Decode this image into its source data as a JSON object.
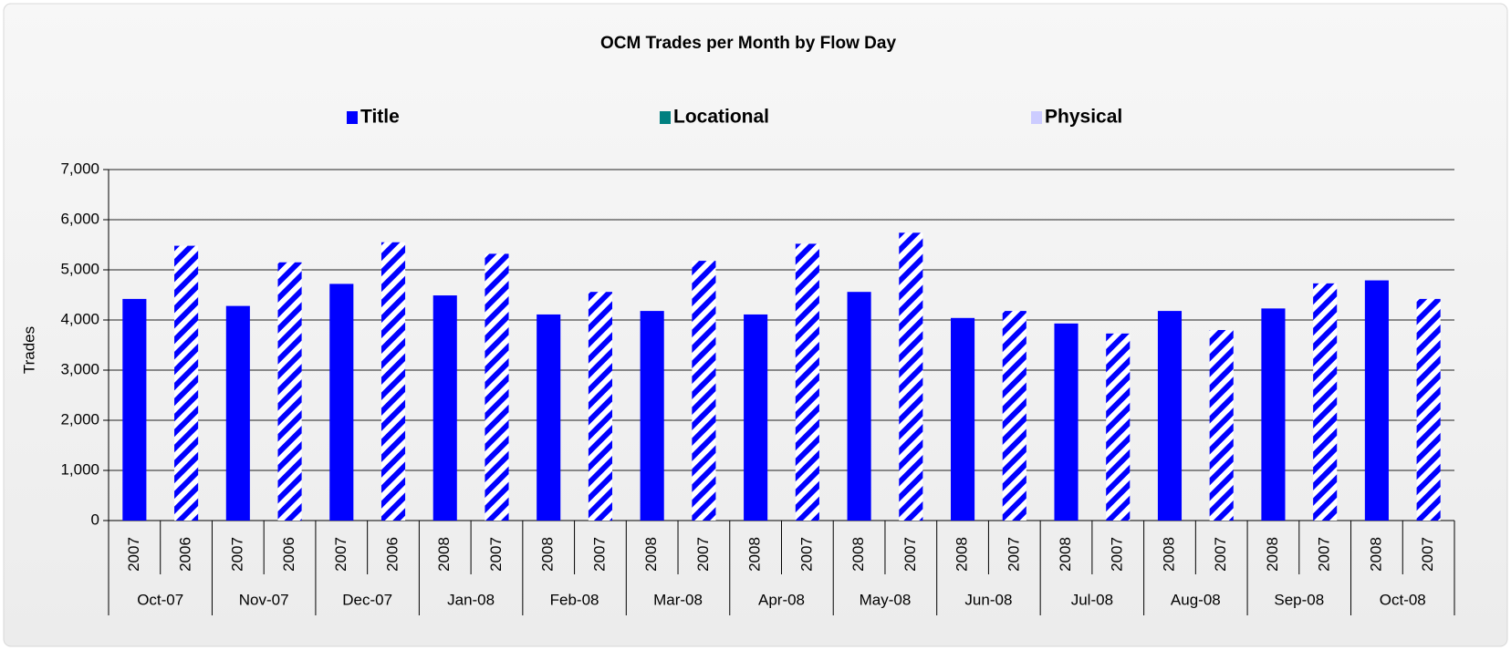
{
  "chart_data": {
    "type": "bar",
    "title": "OCM Trades per Month by Flow Day",
    "y_label": "Trades",
    "groups": [
      "Oct-07",
      "Nov-07",
      "Dec-07",
      "Jan-08",
      "Feb-08",
      "Mar-08",
      "Apr-08",
      "May-08",
      "Jun-08",
      "Jul-08",
      "Aug-08",
      "Sep-08",
      "Oct-08"
    ],
    "categories": [
      "2007",
      "2006",
      "2007",
      "2006",
      "2007",
      "2006",
      "2008",
      "2007",
      "2008",
      "2007",
      "2008",
      "2007",
      "2008",
      "2007",
      "2008",
      "2007",
      "2008",
      "2007",
      "2008",
      "2007",
      "2008",
      "2007",
      "2008",
      "2007",
      "2008",
      "2007"
    ],
    "hatched": [
      false,
      true,
      false,
      true,
      false,
      true,
      false,
      true,
      false,
      true,
      false,
      true,
      false,
      true,
      false,
      true,
      false,
      true,
      false,
      true,
      false,
      true,
      false,
      true,
      false,
      true
    ],
    "stacked": true,
    "series": [
      {
        "name": "Title",
        "color": "#0000ff",
        "values": [
          4420,
          5480,
          4280,
          5150,
          4720,
          5550,
          4490,
          5320,
          4110,
          4560,
          4180,
          5180,
          4110,
          5520,
          4560,
          5740,
          4040,
          4180,
          3930,
          3730,
          4180,
          3800,
          4230,
          4730,
          4790,
          4420
        ]
      },
      {
        "name": "Locational",
        "color": "#008080",
        "values": [
          0,
          0,
          0,
          0,
          0,
          0,
          0,
          0,
          0,
          0,
          0,
          0,
          0,
          0,
          0,
          0,
          0,
          0,
          0,
          0,
          0,
          0,
          0,
          0,
          0,
          0
        ]
      },
      {
        "name": "Physical",
        "color": "#ccccff",
        "values": [
          0,
          0,
          0,
          0,
          0,
          0,
          0,
          0,
          0,
          0,
          0,
          0,
          0,
          0,
          0,
          0,
          0,
          0,
          0,
          0,
          0,
          0,
          0,
          0,
          0,
          0
        ]
      }
    ],
    "ylim": [
      0,
      7000
    ],
    "yticks": [
      0,
      {
        "value": 1000,
        "label": "1,000"
      },
      {
        "value": 2000,
        "label": "2,000"
      },
      {
        "value": 3000,
        "label": "3,000"
      },
      {
        "value": 4000,
        "label": "4,000"
      },
      {
        "value": 5000,
        "label": "5,000"
      },
      {
        "value": 6000,
        "label": "6,000"
      },
      {
        "value": 7000,
        "label": "7,000"
      }
    ],
    "grid": true,
    "legend": "top"
  }
}
